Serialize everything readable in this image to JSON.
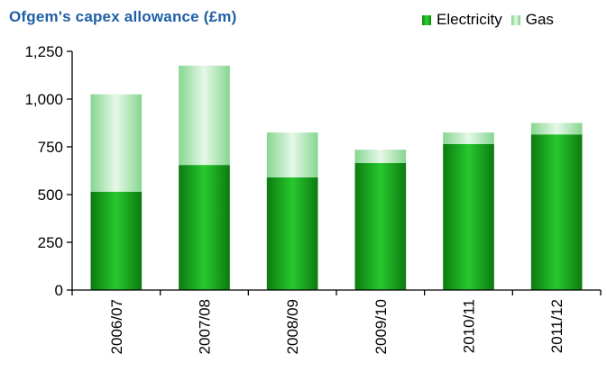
{
  "chart_data": {
    "type": "bar",
    "stacked": true,
    "title": "Ofgem's capex allowance (£m)",
    "categories": [
      "2006/07",
      "2007/08",
      "2008/09",
      "2009/10",
      "2010/11",
      "2011/12"
    ],
    "series": [
      {
        "name": "Electricity",
        "values": [
          515,
          655,
          590,
          665,
          765,
          815
        ],
        "color": "#1fb026"
      },
      {
        "name": "Gas",
        "values": [
          510,
          520,
          235,
          70,
          60,
          60
        ],
        "color": "#b7e9bd"
      }
    ],
    "ylim": [
      0,
      1250
    ],
    "yticks": [
      0,
      250,
      500,
      750,
      1000,
      1250
    ],
    "ytick_labels": [
      "0",
      "250",
      "500",
      "750",
      "1,000",
      "1,250"
    ],
    "legend_position": "top-right",
    "grid": false
  }
}
